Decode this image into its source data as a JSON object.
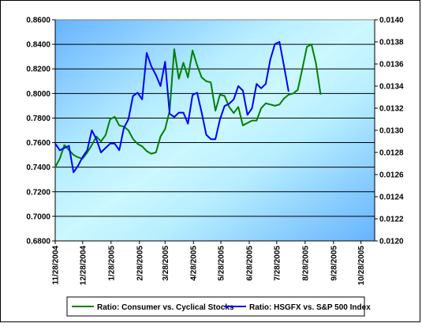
{
  "chart_data": {
    "type": "line",
    "x_tick_labels": [
      "11/28/2004",
      "12/28/2004",
      "1/28/2005",
      "2/28/2005",
      "3/28/2005",
      "4/28/2005",
      "5/28/2005",
      "6/28/2005",
      "7/28/2005",
      "8/28/2005",
      "9/28/2005",
      "10/28/2005"
    ],
    "xlim": [
      "2004-11-28",
      "2005-11-12"
    ],
    "y_left": {
      "ylim": [
        0.68,
        0.86
      ],
      "tick_values": [
        0.68,
        0.7,
        0.72,
        0.74,
        0.76,
        0.78,
        0.8,
        0.82,
        0.84,
        0.86
      ],
      "tick_labels": [
        "0.6800",
        "0.7000",
        "0.7200",
        "0.7400",
        "0.7600",
        "0.7800",
        "0.8000",
        "0.8200",
        "0.8400",
        "0.8600"
      ]
    },
    "y_right": {
      "ylim": [
        0.012,
        0.014
      ],
      "tick_values": [
        0.012,
        0.0122,
        0.0124,
        0.0126,
        0.0128,
        0.013,
        0.0132,
        0.0134,
        0.0136,
        0.0138,
        0.014
      ],
      "tick_labels": [
        "0.0120",
        "0.0122",
        "0.0124",
        "0.0126",
        "0.0128",
        "0.0130",
        "0.0132",
        "0.0134",
        "0.0136",
        "0.0138",
        "0.0140"
      ]
    },
    "grid": true,
    "legend_position": "bottom",
    "series": [
      {
        "name": "Ratio: Consumer vs. Cyclical Stocks",
        "axis": "left",
        "color": "#008000",
        "points": [
          [
            "2004-11-28",
            0.74
          ],
          [
            "2004-12-03",
            0.747
          ],
          [
            "2004-12-08",
            0.758
          ],
          [
            "2004-12-13",
            0.754
          ],
          [
            "2004-12-18",
            0.75
          ],
          [
            "2004-12-23",
            0.748
          ],
          [
            "2004-12-28",
            0.747
          ],
          [
            "2005-01-02",
            0.752
          ],
          [
            "2005-01-07",
            0.758
          ],
          [
            "2005-01-12",
            0.765
          ],
          [
            "2005-01-17",
            0.761
          ],
          [
            "2005-01-22",
            0.766
          ],
          [
            "2005-01-27",
            0.779
          ],
          [
            "2005-02-01",
            0.781
          ],
          [
            "2005-02-06",
            0.774
          ],
          [
            "2005-02-11",
            0.773
          ],
          [
            "2005-02-16",
            0.77
          ],
          [
            "2005-02-21",
            0.763
          ],
          [
            "2005-02-26",
            0.759
          ],
          [
            "2005-03-03",
            0.757
          ],
          [
            "2005-03-08",
            0.753
          ],
          [
            "2005-03-13",
            0.751
          ],
          [
            "2005-03-18",
            0.752
          ],
          [
            "2005-03-23",
            0.765
          ],
          [
            "2005-03-28",
            0.771
          ],
          [
            "2005-04-02",
            0.786
          ],
          [
            "2005-04-07",
            0.836
          ],
          [
            "2005-04-12",
            0.812
          ],
          [
            "2005-04-17",
            0.825
          ],
          [
            "2005-04-22",
            0.813
          ],
          [
            "2005-04-27",
            0.835
          ],
          [
            "2005-05-02",
            0.823
          ],
          [
            "2005-05-07",
            0.813
          ],
          [
            "2005-05-12",
            0.81
          ],
          [
            "2005-05-17",
            0.809
          ],
          [
            "2005-05-22",
            0.786
          ],
          [
            "2005-05-27",
            0.799
          ],
          [
            "2005-06-01",
            0.798
          ],
          [
            "2005-06-06",
            0.789
          ],
          [
            "2005-06-11",
            0.784
          ],
          [
            "2005-06-16",
            0.789
          ],
          [
            "2005-06-21",
            0.774
          ],
          [
            "2005-06-26",
            0.776
          ],
          [
            "2005-07-01",
            0.778
          ],
          [
            "2005-07-06",
            0.778
          ],
          [
            "2005-07-11",
            0.788
          ],
          [
            "2005-07-16",
            0.792
          ],
          [
            "2005-07-21",
            0.791
          ],
          [
            "2005-07-26",
            0.79
          ],
          [
            "2005-07-31",
            0.791
          ],
          [
            "2005-08-05",
            0.796
          ],
          [
            "2005-08-10",
            0.799
          ],
          [
            "2005-08-15",
            0.8
          ],
          [
            "2005-08-20",
            0.803
          ],
          [
            "2005-08-25",
            0.82
          ],
          [
            "2005-08-30",
            0.838
          ],
          [
            "2005-09-04",
            0.84
          ],
          [
            "2005-09-09",
            0.824
          ],
          [
            "2005-09-14",
            0.799
          ]
        ]
      },
      {
        "name": "Ratio: HSGFX vs. S&P 500 Index",
        "axis": "right",
        "color": "#0000ff",
        "points": [
          [
            "2004-11-28",
            0.01288
          ],
          [
            "2004-12-03",
            0.01282
          ],
          [
            "2004-12-08",
            0.01284
          ],
          [
            "2004-12-13",
            0.01286
          ],
          [
            "2004-12-18",
            0.01262
          ],
          [
            "2004-12-23",
            0.01268
          ],
          [
            "2004-12-28",
            0.01276
          ],
          [
            "2005-01-02",
            0.01282
          ],
          [
            "2005-01-07",
            0.013
          ],
          [
            "2005-01-12",
            0.01292
          ],
          [
            "2005-01-17",
            0.0128
          ],
          [
            "2005-01-22",
            0.01284
          ],
          [
            "2005-01-27",
            0.01288
          ],
          [
            "2005-02-01",
            0.01288
          ],
          [
            "2005-02-06",
            0.01282
          ],
          [
            "2005-02-11",
            0.01302
          ],
          [
            "2005-02-16",
            0.0131
          ],
          [
            "2005-02-21",
            0.01331
          ],
          [
            "2005-02-26",
            0.01334
          ],
          [
            "2005-03-03",
            0.01328
          ],
          [
            "2005-03-08",
            0.0137
          ],
          [
            "2005-03-13",
            0.01358
          ],
          [
            "2005-03-18",
            0.0135
          ],
          [
            "2005-03-23",
            0.0134
          ],
          [
            "2005-03-28",
            0.01362
          ],
          [
            "2005-04-02",
            0.01315
          ],
          [
            "2005-04-07",
            0.01312
          ],
          [
            "2005-04-12",
            0.01316
          ],
          [
            "2005-04-17",
            0.01316
          ],
          [
            "2005-04-22",
            0.01306
          ],
          [
            "2005-04-27",
            0.01332
          ],
          [
            "2005-05-02",
            0.01334
          ],
          [
            "2005-05-07",
            0.01316
          ],
          [
            "2005-05-12",
            0.01296
          ],
          [
            "2005-05-17",
            0.01292
          ],
          [
            "2005-05-22",
            0.01292
          ],
          [
            "2005-05-27",
            0.0131
          ],
          [
            "2005-06-01",
            0.01322
          ],
          [
            "2005-06-06",
            0.01324
          ],
          [
            "2005-06-11",
            0.01328
          ],
          [
            "2005-06-16",
            0.0134
          ],
          [
            "2005-06-21",
            0.01336
          ],
          [
            "2005-06-26",
            0.01314
          ],
          [
            "2005-07-01",
            0.0132
          ],
          [
            "2005-07-06",
            0.01342
          ],
          [
            "2005-07-11",
            0.01338
          ],
          [
            "2005-07-16",
            0.01342
          ],
          [
            "2005-07-21",
            0.01364
          ],
          [
            "2005-07-26",
            0.01378
          ],
          [
            "2005-07-31",
            0.0138
          ],
          [
            "2005-08-05",
            0.01358
          ],
          [
            "2005-08-10",
            0.01335
          ]
        ]
      }
    ]
  }
}
